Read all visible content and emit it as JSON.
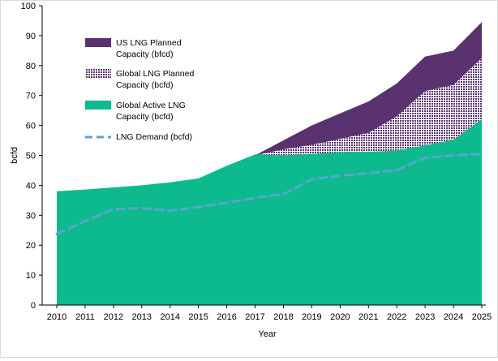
{
  "chart_data": {
    "type": "area",
    "title": "",
    "xlabel": "Year",
    "ylabel": "bcfd",
    "ylim": [
      0,
      100
    ],
    "ytick_step": 10,
    "grid": false,
    "legend_position": "top-left",
    "x": [
      2010,
      2011,
      2012,
      2013,
      2014,
      2015,
      2016,
      2017,
      2018,
      2019,
      2020,
      2021,
      2022,
      2023,
      2024,
      2025
    ],
    "series": [
      {
        "name": "US LNG Planned Capacity (bfcd)",
        "kind": "stacked-area",
        "color": "#5b3270",
        "pattern": "solid",
        "cumulative_top": [
          null,
          null,
          null,
          null,
          null,
          null,
          null,
          50,
          55,
          60,
          64,
          68,
          74,
          83,
          85,
          94.5
        ]
      },
      {
        "name": "Global LNG Planned Capacity (bcfd)",
        "kind": "stacked-area",
        "color": "#5b3270",
        "pattern": "dotted",
        "cumulative_top": [
          null,
          null,
          null,
          null,
          null,
          null,
          null,
          50,
          52,
          53.5,
          55.5,
          57.5,
          63,
          71.5,
          73.5,
          82.5
        ]
      },
      {
        "name": "Global Active LNG Capacity (bcfd)",
        "kind": "area",
        "color": "#0dba8e",
        "pattern": "solid",
        "values": [
          38,
          38.6,
          39.3,
          40,
          41,
          42.3,
          46.5,
          50.3,
          50,
          50.5,
          51,
          51.2,
          51.6,
          53.3,
          55.2,
          62
        ]
      },
      {
        "name": "LNG Demand (bcfd)",
        "kind": "line",
        "color": "#5ba3d0",
        "pattern": "dashed",
        "values": [
          23.8,
          28,
          32,
          32.4,
          31.4,
          32.8,
          34.2,
          35.8,
          37,
          42,
          43.2,
          44,
          45,
          49.2,
          50,
          50.5
        ]
      }
    ]
  }
}
